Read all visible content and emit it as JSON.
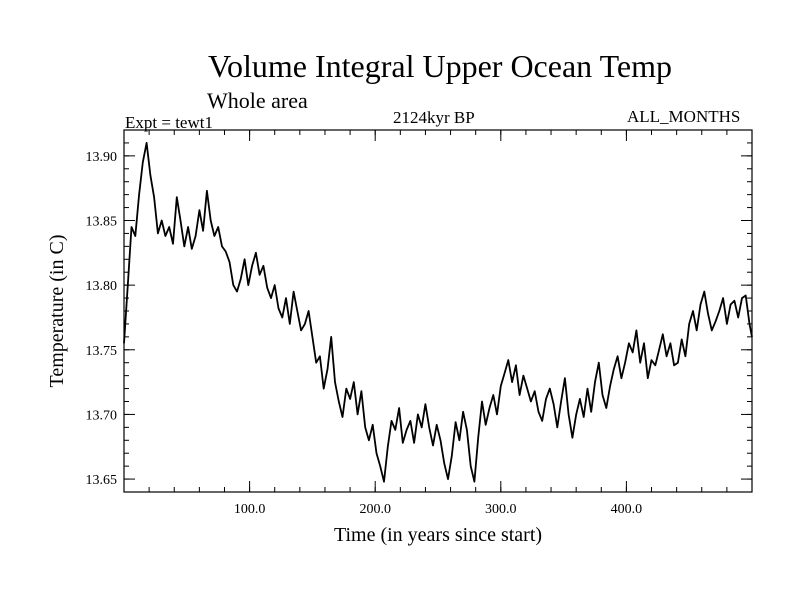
{
  "chart_data": {
    "type": "line",
    "title": "Volume Integral Upper Ocean Temp",
    "subtitle": "Whole area",
    "experiment_label": "Expt = tewt1",
    "period_label": "2124kyr BP",
    "months_label": "ALL_MONTHS",
    "xlabel": "Time (in years since start)",
    "ylabel": "Temperature (in C)",
    "xlim": [
      0,
      500
    ],
    "ylim": [
      13.64,
      13.92
    ],
    "x_major_ticks": [
      100,
      200,
      300,
      400
    ],
    "x_tick_labels": [
      "100.0",
      "200.0",
      "300.0",
      "400.0"
    ],
    "y_major_ticks": [
      13.65,
      13.7,
      13.75,
      13.8,
      13.85,
      13.9
    ],
    "y_tick_labels": [
      "13.65",
      "13.70",
      "13.75",
      "13.80",
      "13.85",
      "13.90"
    ],
    "series": [
      {
        "name": "Volume Integral Upper Ocean Temp",
        "color": "#000000",
        "x": [
          0,
          3,
          6,
          9,
          12,
          15,
          18,
          21,
          24,
          27,
          30,
          33,
          36,
          39,
          42,
          45,
          48,
          51,
          54,
          57,
          60,
          63,
          66,
          69,
          72,
          75,
          78,
          81,
          84,
          87,
          90,
          93,
          96,
          99,
          102,
          105,
          108,
          111,
          114,
          117,
          120,
          123,
          126,
          129,
          132,
          135,
          138,
          141,
          144,
          147,
          150,
          153,
          156,
          159,
          162,
          165,
          168,
          171,
          174,
          177,
          180,
          183,
          186,
          189,
          192,
          195,
          198,
          201,
          204,
          207,
          210,
          213,
          216,
          219,
          222,
          225,
          228,
          231,
          234,
          237,
          240,
          243,
          246,
          249,
          252,
          255,
          258,
          261,
          264,
          267,
          270,
          273,
          276,
          279,
          282,
          285,
          288,
          291,
          294,
          297,
          300,
          303,
          306,
          309,
          312,
          315,
          318,
          321,
          324,
          327,
          330,
          333,
          336,
          339,
          342,
          345,
          348,
          351,
          354,
          357,
          360,
          363,
          366,
          369,
          372,
          375,
          378,
          381,
          384,
          387,
          390,
          393,
          396,
          399,
          402,
          405,
          408,
          411,
          414,
          417,
          420,
          423,
          426,
          429,
          432,
          435,
          438,
          441,
          444,
          447,
          450,
          453,
          456,
          459,
          462,
          465,
          468,
          471,
          474,
          477,
          480,
          483,
          486,
          489,
          492,
          495,
          498,
          500
        ],
        "values": [
          13.755,
          13.8,
          13.845,
          13.838,
          13.87,
          13.895,
          13.91,
          13.885,
          13.868,
          13.84,
          13.85,
          13.838,
          13.845,
          13.832,
          13.868,
          13.85,
          13.83,
          13.845,
          13.828,
          13.838,
          13.858,
          13.842,
          13.873,
          13.85,
          13.838,
          13.845,
          13.83,
          13.826,
          13.818,
          13.8,
          13.795,
          13.805,
          13.82,
          13.8,
          13.815,
          13.825,
          13.808,
          13.815,
          13.798,
          13.79,
          13.8,
          13.782,
          13.775,
          13.79,
          13.77,
          13.795,
          13.78,
          13.765,
          13.77,
          13.78,
          13.76,
          13.74,
          13.745,
          13.72,
          13.735,
          13.76,
          13.725,
          13.71,
          13.698,
          13.72,
          13.712,
          13.725,
          13.7,
          13.718,
          13.69,
          13.68,
          13.692,
          13.67,
          13.66,
          13.648,
          13.675,
          13.695,
          13.688,
          13.705,
          13.678,
          13.688,
          13.695,
          13.678,
          13.7,
          13.69,
          13.708,
          13.69,
          13.676,
          13.692,
          13.68,
          13.662,
          13.65,
          13.668,
          13.694,
          13.68,
          13.702,
          13.688,
          13.66,
          13.648,
          13.682,
          13.71,
          13.692,
          13.705,
          13.715,
          13.7,
          13.722,
          13.732,
          13.742,
          13.725,
          13.738,
          13.715,
          13.73,
          13.72,
          13.71,
          13.718,
          13.702,
          13.695,
          13.712,
          13.72,
          13.708,
          13.69,
          13.71,
          13.728,
          13.7,
          13.682,
          13.7,
          13.712,
          13.698,
          13.72,
          13.702,
          13.725,
          13.74,
          13.715,
          13.705,
          13.722,
          13.735,
          13.745,
          13.728,
          13.74,
          13.755,
          13.748,
          13.765,
          13.74,
          13.755,
          13.728,
          13.742,
          13.738,
          13.75,
          13.762,
          13.745,
          13.755,
          13.738,
          13.74,
          13.758,
          13.745,
          13.77,
          13.78,
          13.765,
          13.785,
          13.795,
          13.778,
          13.765,
          13.772,
          13.78,
          13.79,
          13.77,
          13.785,
          13.788,
          13.775,
          13.79,
          13.792,
          13.77,
          13.76
        ]
      }
    ]
  }
}
